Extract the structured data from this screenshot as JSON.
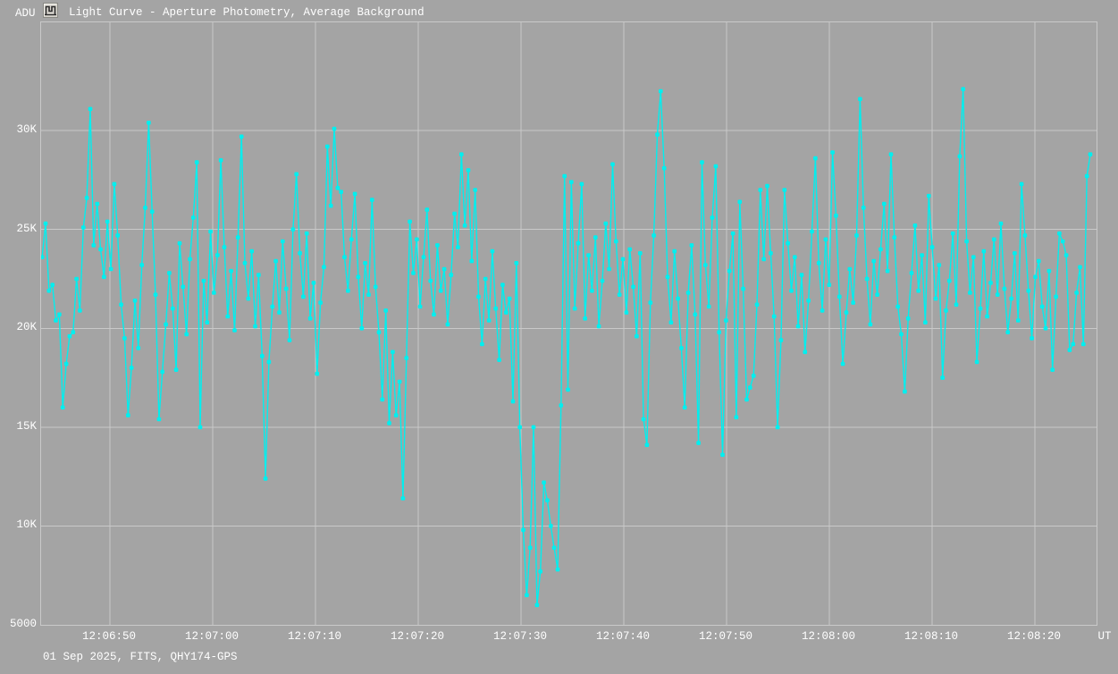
{
  "header": {
    "y_axis_label": "ADU",
    "icon": "light-curve-chart-icon",
    "title": "Light Curve - Aperture Photometry, Average Background"
  },
  "footer": {
    "info": "01 Sep 2025, FITS, QHY174-GPS",
    "x_axis_label": "UT"
  },
  "colors": {
    "background": "#A4A4A4",
    "grid": "#C9C9C9",
    "text": "#FFFFFF",
    "series": "#00EFEF",
    "icon_face": "#D8D5CE",
    "icon_glyph": "#2B2B2B"
  },
  "chart_data": {
    "type": "line",
    "title": "Light Curve - Aperture Photometry, Average Background",
    "ylabel": "ADU",
    "xlabel": "UT",
    "marker": "square",
    "grid": true,
    "legend": "none",
    "ylim": [
      5000,
      35480
    ],
    "y_ticks": [
      {
        "label": "5000",
        "value": 5000
      },
      {
        "label": "10K",
        "value": 10000
      },
      {
        "label": "15K",
        "value": 15000
      },
      {
        "label": "20K",
        "value": 20000
      },
      {
        "label": "25K",
        "value": 25000
      },
      {
        "label": "30K",
        "value": 30000
      }
    ],
    "x_ticks": [
      {
        "label": "12:06:50",
        "offset_s": 6.7
      },
      {
        "label": "12:07:00",
        "offset_s": 16.7
      },
      {
        "label": "12:07:10",
        "offset_s": 26.7
      },
      {
        "label": "12:07:20",
        "offset_s": 36.7
      },
      {
        "label": "12:07:30",
        "offset_s": 46.7
      },
      {
        "label": "12:07:40",
        "offset_s": 56.7
      },
      {
        "label": "12:07:50",
        "offset_s": 66.7
      },
      {
        "label": "12:08:00",
        "offset_s": 76.7
      },
      {
        "label": "12:08:10",
        "offset_s": 86.7
      },
      {
        "label": "12:08:20",
        "offset_s": 96.7
      }
    ],
    "x_duration_s": 102.7,
    "start_offset_s": 0.1,
    "cadence_s": 0.3344,
    "n_points": 306,
    "series_name": "aperture-photometry-intensity",
    "values": [
      23600,
      25300,
      21900,
      22200,
      20400,
      20700,
      16000,
      18200,
      19600,
      19800,
      22500,
      20900,
      25100,
      26600,
      31100,
      24200,
      26300,
      24000,
      22600,
      25400,
      23000,
      27300,
      24700,
      21200,
      19500,
      15600,
      18000,
      21400,
      19000,
      23200,
      26100,
      30400,
      25900,
      21700,
      15400,
      17800,
      20200,
      22800,
      21000,
      17900,
      24300,
      22100,
      19700,
      23500,
      25600,
      28400,
      15000,
      22400,
      20300,
      24900,
      21800,
      23700,
      28500,
      24100,
      20600,
      22900,
      19900,
      24600,
      29700,
      23300,
      21500,
      23900,
      20100,
      22700,
      18600,
      12400,
      18300,
      21100,
      23400,
      20800,
      24400,
      22000,
      19400,
      25000,
      27800,
      23800,
      21600,
      24800,
      20500,
      22300,
      17700,
      21300,
      23100,
      29200,
      26200,
      30100,
      27100,
      26900,
      23600,
      21900,
      24500,
      26800,
      22600,
      20000,
      23300,
      21700,
      26500,
      22100,
      19800,
      16400,
      20900,
      15200,
      18800,
      15600,
      17300,
      11400,
      18500,
      25400,
      22800,
      24500,
      21100,
      23600,
      26000,
      22400,
      20700,
      24200,
      21900,
      23000,
      20200,
      22700,
      25800,
      24100,
      28800,
      25200,
      28000,
      23400,
      27000,
      21600,
      19200,
      22500,
      20400,
      23900,
      21000,
      18400,
      22200,
      20800,
      21500,
      16300,
      23300,
      15000,
      9800,
      6500,
      8900,
      15000,
      6000,
      7700,
      12200,
      11300,
      10000,
      8900,
      7800,
      16100,
      27700,
      16900,
      27400,
      21000,
      24300,
      27300,
      20500,
      23700,
      21900,
      24600,
      20100,
      22400,
      25300,
      23000,
      28300,
      24400,
      21700,
      23500,
      20800,
      24000,
      22100,
      19600,
      23800,
      15400,
      14100,
      21300,
      24700,
      29800,
      32000,
      28100,
      22600,
      20300,
      23900,
      21500,
      19000,
      16000,
      21800,
      24200,
      20700,
      14200,
      28400,
      23200,
      21100,
      25600,
      28200,
      19800,
      13600,
      20400,
      22900,
      24800,
      15500,
      26400,
      22000,
      16400,
      17000,
      17600,
      21200,
      27000,
      23500,
      27200,
      23800,
      20600,
      15000,
      19400,
      27000,
      24300,
      21900,
      23600,
      20100,
      22700,
      18800,
      21400,
      24900,
      28600,
      23300,
      20900,
      24500,
      22200,
      28900,
      25700,
      21600,
      18200,
      20800,
      23000,
      21300,
      24700,
      31600,
      26100,
      22500,
      20200,
      23400,
      21700,
      24000,
      26300,
      22900,
      28800,
      24600,
      21100,
      19700,
      16800,
      20500,
      22800,
      25200,
      21900,
      23700,
      20300,
      26700,
      24100,
      21500,
      23200,
      17500,
      20900,
      22400,
      24800,
      21200,
      28700,
      32100,
      24400,
      21800,
      23600,
      18300,
      21000,
      23900,
      20600,
      22300,
      24500,
      21700,
      25300,
      22000,
      19800,
      21500,
      23800,
      20400,
      27300,
      24700,
      21900,
      19500,
      22600,
      23400,
      21100,
      20000,
      22900,
      17900,
      21600,
      24800,
      24400,
      23700,
      18900,
      19200,
      21800,
      23100,
      19200,
      27700,
      28800
    ]
  }
}
